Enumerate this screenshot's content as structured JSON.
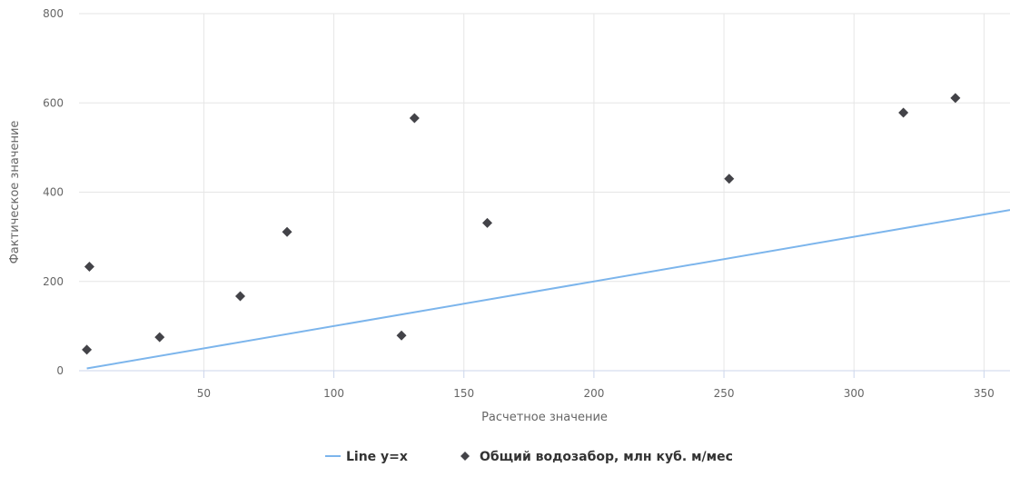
{
  "chart_data": {
    "type": "scatter",
    "xlabel": "Расчетное значение",
    "ylabel": "Фактическое значение",
    "xlim": [
      2,
      360
    ],
    "ylim": [
      0,
      800
    ],
    "x_ticks": [
      50,
      100,
      150,
      200,
      250,
      300,
      350
    ],
    "y_ticks": [
      0,
      200,
      400,
      600,
      800
    ],
    "grid": true,
    "legend_position": "bottom-center",
    "series": [
      {
        "name": "Line y=x",
        "type": "line",
        "color": "#7cb5ec",
        "x": [
          5,
          360
        ],
        "y": [
          5,
          360
        ]
      },
      {
        "name": "Общий водозабор, млн куб. м/мес",
        "type": "scatter",
        "marker": "diamond",
        "color": "#434348",
        "x": [
          5,
          6,
          33,
          64,
          82,
          126,
          131,
          159,
          252,
          319,
          339
        ],
        "y": [
          47,
          233,
          75,
          167,
          311,
          79,
          566,
          331,
          430,
          578,
          611
        ]
      }
    ]
  }
}
